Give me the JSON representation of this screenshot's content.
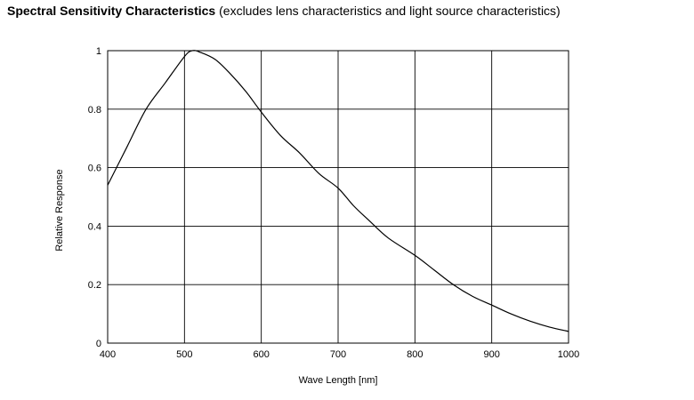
{
  "title": {
    "main": "Spectral Sensitivity Characteristics",
    "note": "(excludes lens characteristics and light source characteristics)"
  },
  "chart_data": {
    "type": "line",
    "xlabel": "Wave Length [nm]",
    "ylabel": "Relative Response",
    "xlim": [
      400,
      1000
    ],
    "ylim": [
      0,
      1
    ],
    "x_ticks": [
      400,
      500,
      600,
      700,
      800,
      900,
      1000
    ],
    "y_ticks": [
      0,
      0.2,
      0.4,
      0.6,
      0.8,
      1
    ],
    "y_tick_labels": [
      "0",
      "0.2",
      "0.4",
      "0.6",
      "0.8",
      "1"
    ],
    "grid": true,
    "line_color": "#000000",
    "series": [
      {
        "x": [
          400,
          425,
          450,
          475,
          500,
          510,
          520,
          540,
          560,
          580,
          600,
          625,
          650,
          675,
          700,
          720,
          740,
          765,
          800,
          825,
          850,
          875,
          900,
          925,
          950,
          975,
          1000
        ],
        "y": [
          0.54,
          0.67,
          0.8,
          0.89,
          0.98,
          1.0,
          0.995,
          0.97,
          0.92,
          0.86,
          0.79,
          0.71,
          0.65,
          0.58,
          0.53,
          0.47,
          0.42,
          0.36,
          0.3,
          0.25,
          0.2,
          0.16,
          0.13,
          0.1,
          0.075,
          0.055,
          0.04
        ]
      }
    ]
  }
}
